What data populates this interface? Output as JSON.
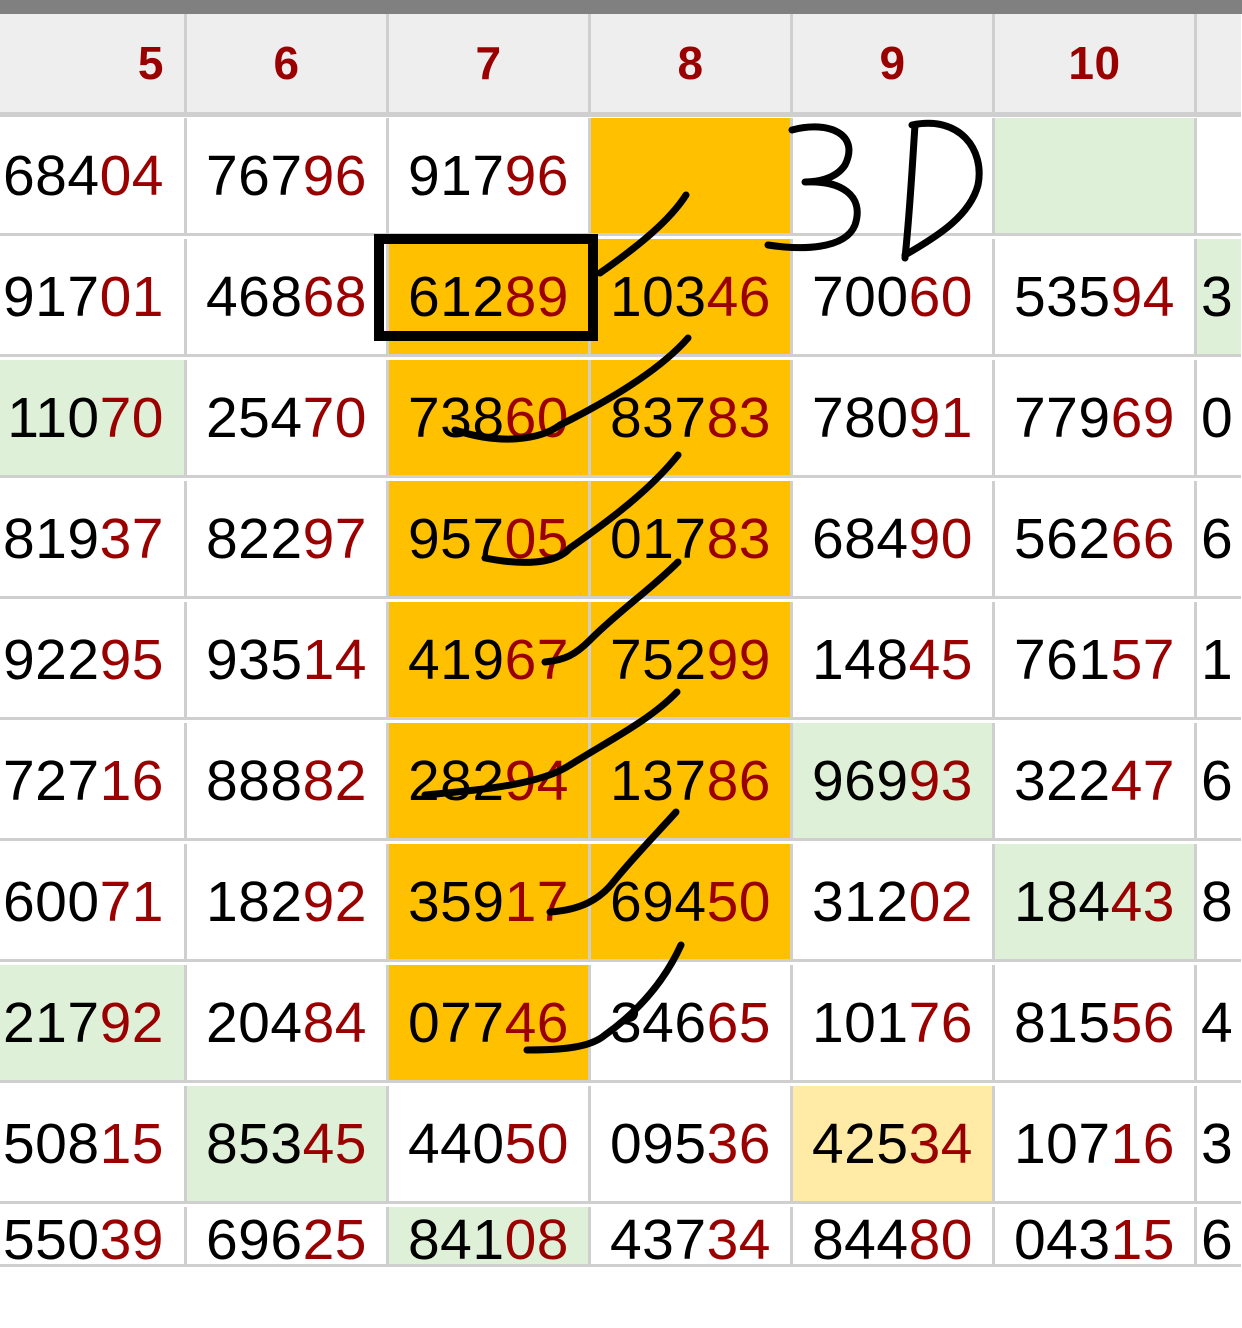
{
  "headers": [
    "5",
    "6",
    "7",
    "8",
    "9",
    "10",
    ""
  ],
  "rows": [
    [
      {
        "a": "684",
        "b": "04"
      },
      {
        "a": "767",
        "b": "96"
      },
      {
        "a": "917",
        "b": "96"
      },
      {
        "a": "",
        "b": "",
        "bg": "orange"
      },
      {
        "a": "",
        "b": ""
      },
      {
        "a": "",
        "b": "",
        "bg": "green"
      },
      {
        "a": "",
        "b": ""
      }
    ],
    [
      {
        "a": "917",
        "b": "01"
      },
      {
        "a": "468",
        "b": "68"
      },
      {
        "a": "612",
        "b": "89",
        "bg": "orange"
      },
      {
        "a": "103",
        "b": "46",
        "bg": "orange"
      },
      {
        "a": "700",
        "b": "60"
      },
      {
        "a": "535",
        "b": "94"
      },
      {
        "a": "3",
        "b": "",
        "bg": "green"
      }
    ],
    [
      {
        "a": "110",
        "b": "70",
        "bg": "green"
      },
      {
        "a": "254",
        "b": "70"
      },
      {
        "a": "738",
        "b": "60",
        "bg": "orange"
      },
      {
        "a": "837",
        "b": "83",
        "bg": "orange"
      },
      {
        "a": "780",
        "b": "91"
      },
      {
        "a": "779",
        "b": "69"
      },
      {
        "a": "0",
        "b": ""
      }
    ],
    [
      {
        "a": "819",
        "b": "37"
      },
      {
        "a": "822",
        "b": "97"
      },
      {
        "a": "957",
        "b": "05",
        "bg": "orange"
      },
      {
        "a": "017",
        "b": "83",
        "bg": "orange"
      },
      {
        "a": "684",
        "b": "90"
      },
      {
        "a": "562",
        "b": "66"
      },
      {
        "a": "6",
        "b": ""
      }
    ],
    [
      {
        "a": "922",
        "b": "95"
      },
      {
        "a": "935",
        "b": "14"
      },
      {
        "a": "419",
        "b": "67",
        "bg": "orange"
      },
      {
        "a": "752",
        "b": "99",
        "bg": "orange"
      },
      {
        "a": "148",
        "b": "45"
      },
      {
        "a": "761",
        "b": "57"
      },
      {
        "a": "1",
        "b": ""
      }
    ],
    [
      {
        "a": "727",
        "b": "16"
      },
      {
        "a": "888",
        "b": "82"
      },
      {
        "a": "282",
        "b": "94",
        "bg": "orange"
      },
      {
        "a": "137",
        "b": "86",
        "bg": "orange"
      },
      {
        "a": "969",
        "b": "93",
        "bg": "green"
      },
      {
        "a": "322",
        "b": "47"
      },
      {
        "a": "6",
        "b": ""
      }
    ],
    [
      {
        "a": "600",
        "b": "71"
      },
      {
        "a": "182",
        "b": "92"
      },
      {
        "a": "359",
        "b": "17",
        "bg": "orange"
      },
      {
        "a": "694",
        "b": "50",
        "bg": "orange"
      },
      {
        "a": "312",
        "b": "02"
      },
      {
        "a": "184",
        "b": "43",
        "bg": "green"
      },
      {
        "a": "8",
        "b": ""
      }
    ],
    [
      {
        "a": "217",
        "b": "92",
        "bg": "green"
      },
      {
        "a": "204",
        "b": "84"
      },
      {
        "a": "077",
        "b": "46",
        "bg": "orange"
      },
      {
        "a": "346",
        "b": "65"
      },
      {
        "a": "101",
        "b": "76"
      },
      {
        "a": "815",
        "b": "56"
      },
      {
        "a": "4",
        "b": ""
      }
    ],
    [
      {
        "a": "508",
        "b": "15"
      },
      {
        "a": "853",
        "b": "45",
        "bg": "green"
      },
      {
        "a": "440",
        "b": "50"
      },
      {
        "a": "095",
        "b": "36"
      },
      {
        "a": "425",
        "b": "34",
        "bg": "yellow"
      },
      {
        "a": "107",
        "b": "16"
      },
      {
        "a": "3",
        "b": ""
      }
    ],
    [
      {
        "a": "550",
        "b": "39"
      },
      {
        "a": "696",
        "b": "25"
      },
      {
        "a": "841",
        "b": "08",
        "bg": "green"
      },
      {
        "a": "437",
        "b": "34"
      },
      {
        "a": "844",
        "b": "80"
      },
      {
        "a": "043",
        "b": "15"
      },
      {
        "a": "6",
        "b": ""
      }
    ]
  ],
  "annotation": {
    "text": "3D",
    "ink_color": "#000000"
  },
  "colors": {
    "tail": "#9b0000",
    "orange": "#ffc000",
    "green": "#dff0d8",
    "yellow": "#ffeaa6",
    "header_bg": "#eeeeee"
  }
}
